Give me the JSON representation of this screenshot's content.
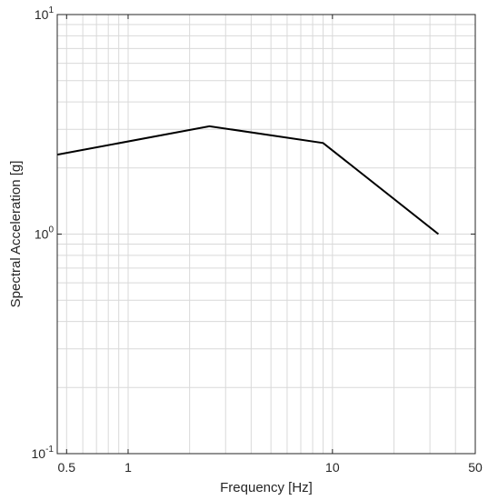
{
  "chart_data": {
    "type": "line",
    "title": "",
    "xlabel": "Frequency [Hz]",
    "ylabel": "Spectral Acceleration [g]",
    "xscale": "log",
    "yscale": "log",
    "xlim": [
      0.45,
      50
    ],
    "ylim": [
      0.1,
      10
    ],
    "grid": true,
    "minor_grid": true,
    "x_ticks": [
      0.5,
      1,
      10,
      50
    ],
    "x_tick_labels": [
      "0.5",
      "1",
      "10",
      "50"
    ],
    "y_ticks": [
      {
        "value": 0.1,
        "base": "10",
        "exp": "-1"
      },
      {
        "value": 1,
        "base": "10",
        "exp": "0"
      },
      {
        "value": 10,
        "base": "10",
        "exp": "1"
      }
    ],
    "series": [
      {
        "color": "#000000",
        "x": [
          0.45,
          2.5,
          9,
          33
        ],
        "y": [
          2.3,
          3.1,
          2.6,
          1.0
        ]
      }
    ]
  }
}
